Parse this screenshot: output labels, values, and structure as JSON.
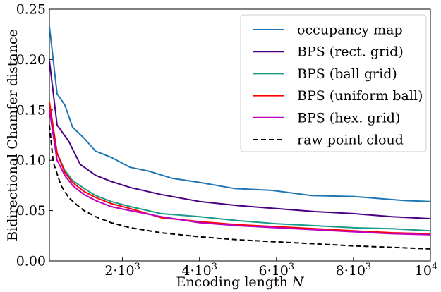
{
  "chart_data": {
    "type": "line",
    "xlabel": "Encoding length",
    "xlabel_var": "N",
    "ylabel": "Bidirectional Chamfer distance",
    "xlim": [
      100,
      10000
    ],
    "ylim": [
      0,
      0.25
    ],
    "grid": false,
    "legend_position": "top-right",
    "x_ticks": [
      {
        "value": 2000,
        "mantissa": "2",
        "base": "·10",
        "exp": "3"
      },
      {
        "value": 4000,
        "mantissa": "4",
        "base": "·10",
        "exp": "3"
      },
      {
        "value": 6000,
        "mantissa": "6",
        "base": "·10",
        "exp": "3"
      },
      {
        "value": 8000,
        "mantissa": "8",
        "base": "·10",
        "exp": "3"
      },
      {
        "value": 10000,
        "mantissa": "",
        "base": "10",
        "exp": "4"
      }
    ],
    "y_ticks": [
      {
        "value": 0.0,
        "label": "0.00"
      },
      {
        "value": 0.05,
        "label": "0.05"
      },
      {
        "value": 0.1,
        "label": "0.10"
      },
      {
        "value": 0.15,
        "label": "0.15"
      },
      {
        "value": 0.2,
        "label": "0.20"
      },
      {
        "value": 0.25,
        "label": "0.25"
      }
    ],
    "series": [
      {
        "name": "occupancy map",
        "color": "#1f77b4",
        "dash": "solid",
        "x": [
          100,
          300,
          500,
          700,
          1000,
          1300,
          1700,
          2200,
          2700,
          3300,
          4000,
          4900,
          5900,
          6900,
          8000,
          9300,
          10000
        ],
        "y": [
          0.233,
          0.166,
          0.155,
          0.133,
          0.122,
          0.109,
          0.103,
          0.093,
          0.089,
          0.082,
          0.078,
          0.072,
          0.07,
          0.065,
          0.064,
          0.06,
          0.059
        ]
      },
      {
        "name": "BPS (rect. grid)",
        "color": "#4b0082",
        "dash": "solid",
        "x": [
          100,
          300,
          600,
          900,
          1300,
          1700,
          2200,
          3000,
          4000,
          5000,
          6000,
          7000,
          8000,
          9000,
          10000
        ],
        "y": [
          0.199,
          0.135,
          0.119,
          0.096,
          0.085,
          0.079,
          0.073,
          0.066,
          0.059,
          0.055,
          0.052,
          0.049,
          0.047,
          0.044,
          0.042
        ]
      },
      {
        "name": "BPS (ball grid)",
        "color": "#1a9a8a",
        "dash": "solid",
        "x": [
          100,
          300,
          500,
          700,
          1000,
          1300,
          1700,
          2200,
          3000,
          4000,
          5000,
          6000,
          7000,
          8000,
          9000,
          10000
        ],
        "y": [
          0.155,
          0.107,
          0.09,
          0.08,
          0.072,
          0.065,
          0.059,
          0.054,
          0.047,
          0.044,
          0.04,
          0.037,
          0.035,
          0.033,
          0.032,
          0.03
        ]
      },
      {
        "name": "BPS (uniform ball)",
        "color": "#ff0000",
        "dash": "solid",
        "x": [
          100,
          300,
          500,
          700,
          1000,
          1300,
          1700,
          2200,
          3000,
          4000,
          5000,
          6000,
          7000,
          8000,
          9000,
          10000
        ],
        "y": [
          0.158,
          0.107,
          0.088,
          0.078,
          0.069,
          0.063,
          0.057,
          0.052,
          0.043,
          0.039,
          0.036,
          0.034,
          0.032,
          0.03,
          0.028,
          0.027
        ]
      },
      {
        "name": "BPS (hex. grid)",
        "color": "#bf00bf",
        "dash": "solid",
        "x": [
          100,
          300,
          500,
          700,
          1000,
          1300,
          1700,
          2200,
          3000,
          4000,
          5000,
          6000,
          7000,
          8000,
          9000,
          10000
        ],
        "y": [
          0.15,
          0.1,
          0.085,
          0.075,
          0.066,
          0.06,
          0.054,
          0.05,
          0.044,
          0.038,
          0.035,
          0.033,
          0.031,
          0.029,
          0.027,
          0.026
        ]
      },
      {
        "name": "raw point cloud",
        "color": "#000000",
        "dash": "dashed",
        "x": [
          100,
          200,
          400,
          600,
          800,
          1000,
          1300,
          1700,
          2200,
          3000,
          4000,
          5000,
          6000,
          7000,
          8000,
          9000,
          10000
        ],
        "y": [
          0.135,
          0.098,
          0.075,
          0.063,
          0.056,
          0.05,
          0.044,
          0.038,
          0.033,
          0.028,
          0.024,
          0.021,
          0.019,
          0.017,
          0.015,
          0.0135,
          0.012
        ]
      }
    ]
  }
}
